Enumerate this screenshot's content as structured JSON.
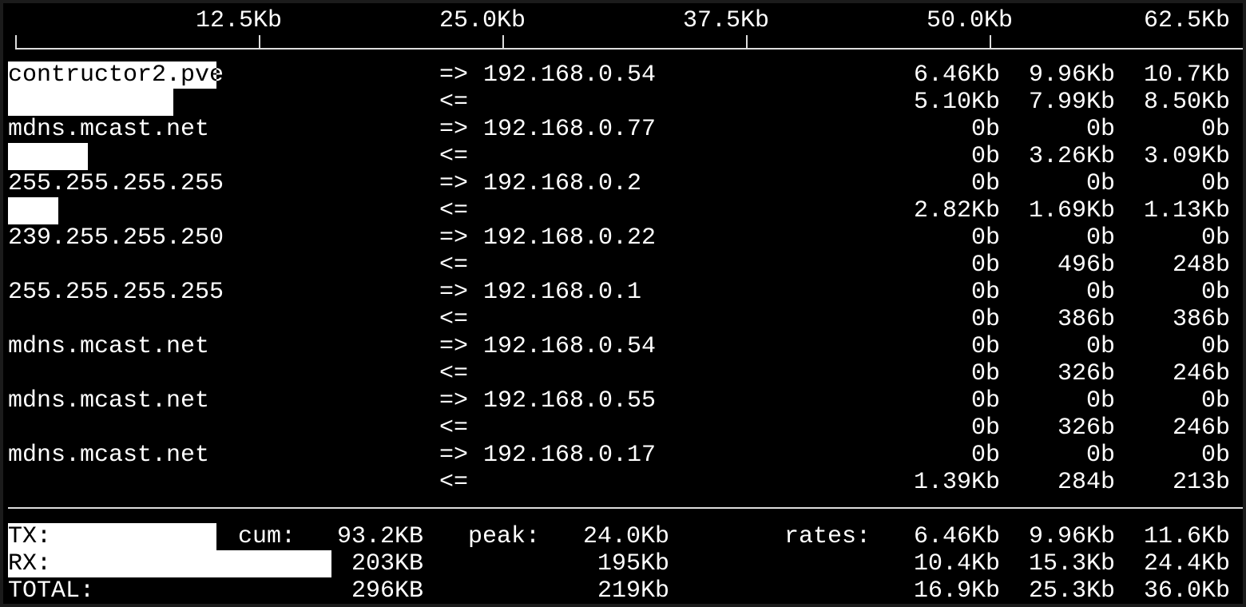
{
  "scale": {
    "unit_max_kb": 62.5,
    "ticks": [
      "12.5Kb",
      "25.0Kb",
      "37.5Kb",
      "50.0Kb",
      "62.5Kb"
    ]
  },
  "connections": [
    {
      "host": "contructor2.pve",
      "peer": "192.168.0.54",
      "tx": [
        "6.46Kb",
        "9.96Kb",
        "10.7Kb"
      ],
      "rx": [
        "5.10Kb",
        "7.99Kb",
        "8.50Kb"
      ],
      "tx_bar_kb": 10.7,
      "rx_bar_kb": 8.5
    },
    {
      "host": "mdns.mcast.net",
      "peer": "192.168.0.77",
      "tx": [
        "0b",
        "0b",
        "0b"
      ],
      "rx": [
        "0b",
        "3.26Kb",
        "3.09Kb"
      ],
      "tx_bar_kb": 0,
      "rx_bar_kb": 4.1
    },
    {
      "host": "255.255.255.255",
      "peer": "192.168.0.2",
      "tx": [
        "0b",
        "0b",
        "0b"
      ],
      "rx": [
        "2.82Kb",
        "1.69Kb",
        "1.13Kb"
      ],
      "tx_bar_kb": 0,
      "rx_bar_kb": 2.6
    },
    {
      "host": "239.255.255.250",
      "peer": "192.168.0.22",
      "tx": [
        "0b",
        "0b",
        "0b"
      ],
      "rx": [
        "0b",
        "496b",
        "248b"
      ],
      "tx_bar_kb": 0,
      "rx_bar_kb": 0
    },
    {
      "host": "255.255.255.255",
      "peer": "192.168.0.1",
      "tx": [
        "0b",
        "0b",
        "0b"
      ],
      "rx": [
        "0b",
        "386b",
        "386b"
      ],
      "tx_bar_kb": 0,
      "rx_bar_kb": 0
    },
    {
      "host": "mdns.mcast.net",
      "peer": "192.168.0.54",
      "tx": [
        "0b",
        "0b",
        "0b"
      ],
      "rx": [
        "0b",
        "326b",
        "246b"
      ],
      "tx_bar_kb": 0,
      "rx_bar_kb": 0
    },
    {
      "host": "mdns.mcast.net",
      "peer": "192.168.0.55",
      "tx": [
        "0b",
        "0b",
        "0b"
      ],
      "rx": [
        "0b",
        "326b",
        "246b"
      ],
      "tx_bar_kb": 0,
      "rx_bar_kb": 0
    },
    {
      "host": "mdns.mcast.net",
      "peer": "192.168.0.17",
      "tx": [
        "0b",
        "0b",
        "0b"
      ],
      "rx": [
        "1.39Kb",
        "284b",
        "213b"
      ],
      "tx_bar_kb": 0,
      "rx_bar_kb": 0
    }
  ],
  "arrows": {
    "tx": "=>",
    "rx": "<="
  },
  "totals": {
    "labels": {
      "cum": "cum:",
      "peak": "peak:",
      "rates": "rates:"
    },
    "rows": [
      {
        "label": "TX:",
        "cum": "93.2KB",
        "peak": "24.0Kb",
        "rates": [
          "6.46Kb",
          "9.96Kb",
          "11.6Kb"
        ],
        "bar_kb": 10.7
      },
      {
        "label": "RX:",
        "cum": "203KB",
        "peak": "195Kb",
        "rates": [
          "10.4Kb",
          "15.3Kb",
          "24.4Kb"
        ],
        "bar_kb": 16.6
      },
      {
        "label": "TOTAL:",
        "cum": "296KB",
        "peak": "219Kb",
        "rates": [
          "16.9Kb",
          "25.3Kb",
          "36.0Kb"
        ],
        "bar_kb": 0
      }
    ]
  }
}
